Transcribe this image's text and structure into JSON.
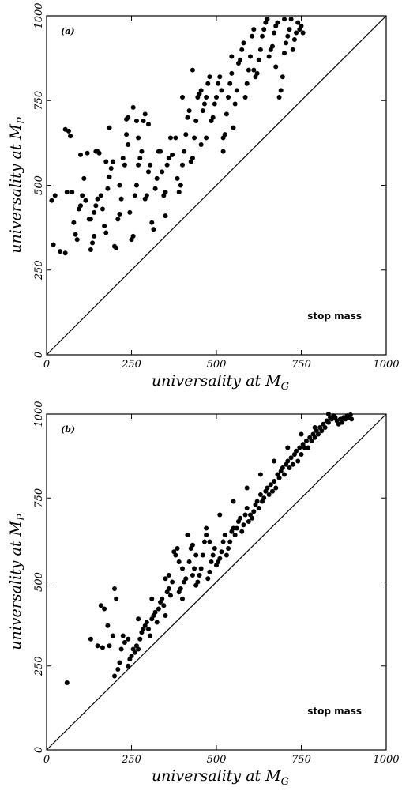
{
  "chart_data": [
    {
      "type": "scatter",
      "panel_label": "(a)",
      "xlabel": "universality at M",
      "xlabel_sub": "G",
      "ylabel": "universality at M",
      "ylabel_sub": "P",
      "annotation": "stop mass",
      "xlim": [
        0,
        1000
      ],
      "ylim": [
        0,
        1000
      ],
      "xticks": [
        "0",
        "250",
        "500",
        "750",
        "1000"
      ],
      "yticks": [
        "0",
        "250",
        "500",
        "750",
        "1000"
      ],
      "grid": false,
      "reference_line": [
        [
          0,
          0
        ],
        [
          1000,
          1000
        ]
      ],
      "points": [
        [
          15,
          455
        ],
        [
          25,
          470
        ],
        [
          20,
          325
        ],
        [
          40,
          305
        ],
        [
          55,
          300
        ],
        [
          55,
          665
        ],
        [
          65,
          660
        ],
        [
          70,
          645
        ],
        [
          60,
          480
        ],
        [
          75,
          480
        ],
        [
          80,
          390
        ],
        [
          85,
          355
        ],
        [
          90,
          340
        ],
        [
          95,
          430
        ],
        [
          100,
          440
        ],
        [
          105,
          470
        ],
        [
          110,
          520
        ],
        [
          115,
          455
        ],
        [
          100,
          590
        ],
        [
          120,
          595
        ],
        [
          125,
          400
        ],
        [
          130,
          400
        ],
        [
          130,
          310
        ],
        [
          135,
          330
        ],
        [
          140,
          350
        ],
        [
          140,
          420
        ],
        [
          145,
          440
        ],
        [
          150,
          460
        ],
        [
          150,
          600
        ],
        [
          155,
          595
        ],
        [
          160,
          470
        ],
        [
          165,
          430
        ],
        [
          170,
          380
        ],
        [
          175,
          360
        ],
        [
          180,
          490
        ],
        [
          185,
          525
        ],
        [
          185,
          670
        ],
        [
          190,
          550
        ],
        [
          195,
          570
        ],
        [
          200,
          320
        ],
        [
          205,
          315
        ],
        [
          210,
          400
        ],
        [
          215,
          415
        ],
        [
          220,
          460
        ],
        [
          225,
          580
        ],
        [
          230,
          560
        ],
        [
          235,
          650
        ],
        [
          235,
          695
        ],
        [
          240,
          700
        ],
        [
          245,
          420
        ],
        [
          250,
          340
        ],
        [
          255,
          350
        ],
        [
          260,
          470
        ],
        [
          265,
          500
        ],
        [
          270,
          560
        ],
        [
          275,
          580
        ],
        [
          280,
          600
        ],
        [
          285,
          690
        ],
        [
          290,
          710
        ],
        [
          255,
          730
        ],
        [
          265,
          690
        ],
        [
          270,
          640
        ],
        [
          295,
          470
        ],
        [
          300,
          540
        ],
        [
          305,
          560
        ],
        [
          310,
          390
        ],
        [
          315,
          370
        ],
        [
          320,
          490
        ],
        [
          325,
          520
        ],
        [
          330,
          600
        ],
        [
          335,
          600
        ],
        [
          340,
          540
        ],
        [
          345,
          470
        ],
        [
          350,
          480
        ],
        [
          355,
          560
        ],
        [
          360,
          580
        ],
        [
          365,
          640
        ],
        [
          370,
          590
        ],
        [
          380,
          640
        ],
        [
          385,
          520
        ],
        [
          390,
          480
        ],
        [
          395,
          500
        ],
        [
          400,
          560
        ],
        [
          405,
          600
        ],
        [
          410,
          650
        ],
        [
          415,
          700
        ],
        [
          420,
          720
        ],
        [
          425,
          570
        ],
        [
          430,
          580
        ],
        [
          435,
          640
        ],
        [
          440,
          690
        ],
        [
          445,
          760
        ],
        [
          450,
          770
        ],
        [
          455,
          780
        ],
        [
          460,
          720
        ],
        [
          465,
          740
        ],
        [
          470,
          760
        ],
        [
          475,
          800
        ],
        [
          480,
          820
        ],
        [
          485,
          690
        ],
        [
          490,
          700
        ],
        [
          495,
          740
        ],
        [
          500,
          760
        ],
        [
          505,
          800
        ],
        [
          510,
          820
        ],
        [
          515,
          780
        ],
        [
          520,
          640
        ],
        [
          525,
          650
        ],
        [
          530,
          710
        ],
        [
          535,
          760
        ],
        [
          540,
          800
        ],
        [
          545,
          830
        ],
        [
          550,
          670
        ],
        [
          555,
          740
        ],
        [
          560,
          780
        ],
        [
          565,
          860
        ],
        [
          570,
          870
        ],
        [
          575,
          900
        ],
        [
          580,
          920
        ],
        [
          585,
          760
        ],
        [
          590,
          800
        ],
        [
          595,
          840
        ],
        [
          600,
          880
        ],
        [
          605,
          940
        ],
        [
          610,
          960
        ],
        [
          615,
          820
        ],
        [
          620,
          830
        ],
        [
          625,
          870
        ],
        [
          630,
          900
        ],
        [
          635,
          940
        ],
        [
          640,
          960
        ],
        [
          645,
          980
        ],
        [
          650,
          990
        ],
        [
          655,
          880
        ],
        [
          660,
          900
        ],
        [
          665,
          910
        ],
        [
          670,
          950
        ],
        [
          675,
          970
        ],
        [
          680,
          980
        ],
        [
          685,
          760
        ],
        [
          690,
          780
        ],
        [
          695,
          820
        ],
        [
          700,
          890
        ],
        [
          705,
          920
        ],
        [
          710,
          940
        ],
        [
          715,
          960
        ],
        [
          720,
          990
        ],
        [
          725,
          900
        ],
        [
          730,
          930
        ],
        [
          735,
          950
        ],
        [
          740,
          980
        ],
        [
          745,
          960
        ],
        [
          750,
          970
        ],
        [
          755,
          950
        ],
        [
          520,
          600
        ],
        [
          470,
          640
        ],
        [
          430,
          840
        ],
        [
          400,
          760
        ],
        [
          455,
          620
        ],
        [
          545,
          880
        ],
        [
          610,
          840
        ],
        [
          675,
          850
        ],
        [
          700,
          990
        ],
        [
          350,
          410
        ],
        [
          290,
          460
        ],
        [
          240,
          620
        ],
        [
          215,
          500
        ],
        [
          175,
          570
        ],
        [
          145,
          600
        ],
        [
          300,
          680
        ]
      ]
    },
    {
      "type": "scatter",
      "panel_label": "(b)",
      "xlabel": "universality at M",
      "xlabel_sub": "G",
      "ylabel": "universality at M",
      "ylabel_sub": "P",
      "annotation": "stop mass",
      "xlim": [
        0,
        1000
      ],
      "ylim": [
        0,
        1000
      ],
      "xticks": [
        "0",
        "250",
        "500",
        "750",
        "1000"
      ],
      "yticks": [
        "0",
        "250",
        "500",
        "750",
        "1000"
      ],
      "grid": false,
      "reference_line": [
        [
          0,
          0
        ],
        [
          1000,
          1000
        ]
      ],
      "points": [
        [
          60,
          200
        ],
        [
          130,
          330
        ],
        [
          150,
          310
        ],
        [
          160,
          430
        ],
        [
          170,
          420
        ],
        [
          165,
          305
        ],
        [
          180,
          370
        ],
        [
          185,
          310
        ],
        [
          195,
          340
        ],
        [
          200,
          480
        ],
        [
          205,
          450
        ],
        [
          200,
          220
        ],
        [
          210,
          240
        ],
        [
          215,
          260
        ],
        [
          220,
          300
        ],
        [
          225,
          340
        ],
        [
          230,
          320
        ],
        [
          240,
          250
        ],
        [
          245,
          270
        ],
        [
          250,
          280
        ],
        [
          255,
          300
        ],
        [
          260,
          290
        ],
        [
          265,
          310
        ],
        [
          270,
          300
        ],
        [
          275,
          330
        ],
        [
          280,
          350
        ],
        [
          285,
          360
        ],
        [
          290,
          370
        ],
        [
          295,
          380
        ],
        [
          300,
          360
        ],
        [
          305,
          340
        ],
        [
          310,
          390
        ],
        [
          315,
          400
        ],
        [
          320,
          410
        ],
        [
          325,
          380
        ],
        [
          330,
          420
        ],
        [
          335,
          440
        ],
        [
          340,
          450
        ],
        [
          345,
          430
        ],
        [
          350,
          400
        ],
        [
          355,
          470
        ],
        [
          360,
          480
        ],
        [
          365,
          460
        ],
        [
          370,
          500
        ],
        [
          375,
          590
        ],
        [
          380,
          580
        ],
        [
          385,
          600
        ],
        [
          390,
          470
        ],
        [
          395,
          480
        ],
        [
          400,
          450
        ],
        [
          405,
          500
        ],
        [
          410,
          510
        ],
        [
          415,
          640
        ],
        [
          420,
          560
        ],
        [
          425,
          600
        ],
        [
          430,
          520
        ],
        [
          435,
          540
        ],
        [
          440,
          490
        ],
        [
          445,
          500
        ],
        [
          450,
          520
        ],
        [
          455,
          540
        ],
        [
          460,
          580
        ],
        [
          465,
          620
        ],
        [
          470,
          640
        ],
        [
          475,
          510
        ],
        [
          480,
          530
        ],
        [
          485,
          560
        ],
        [
          490,
          580
        ],
        [
          495,
          600
        ],
        [
          500,
          550
        ],
        [
          505,
          560
        ],
        [
          510,
          570
        ],
        [
          515,
          590
        ],
        [
          520,
          620
        ],
        [
          525,
          640
        ],
        [
          530,
          580
        ],
        [
          535,
          600
        ],
        [
          540,
          620
        ],
        [
          545,
          650
        ],
        [
          550,
          660
        ],
        [
          555,
          640
        ],
        [
          560,
          660
        ],
        [
          565,
          680
        ],
        [
          570,
          690
        ],
        [
          575,
          650
        ],
        [
          580,
          670
        ],
        [
          585,
          700
        ],
        [
          590,
          720
        ],
        [
          595,
          680
        ],
        [
          600,
          700
        ],
        [
          605,
          690
        ],
        [
          610,
          710
        ],
        [
          615,
          730
        ],
        [
          620,
          740
        ],
        [
          625,
          720
        ],
        [
          630,
          760
        ],
        [
          635,
          740
        ],
        [
          640,
          750
        ],
        [
          645,
          770
        ],
        [
          650,
          780
        ],
        [
          655,
          760
        ],
        [
          660,
          790
        ],
        [
          665,
          770
        ],
        [
          670,
          800
        ],
        [
          675,
          780
        ],
        [
          680,
          820
        ],
        [
          685,
          810
        ],
        [
          690,
          830
        ],
        [
          695,
          840
        ],
        [
          700,
          820
        ],
        [
          705,
          850
        ],
        [
          710,
          860
        ],
        [
          715,
          840
        ],
        [
          720,
          870
        ],
        [
          725,
          850
        ],
        [
          730,
          880
        ],
        [
          735,
          890
        ],
        [
          740,
          860
        ],
        [
          745,
          900
        ],
        [
          750,
          880
        ],
        [
          755,
          910
        ],
        [
          760,
          900
        ],
        [
          765,
          920
        ],
        [
          770,
          900
        ],
        [
          775,
          930
        ],
        [
          780,
          920
        ],
        [
          785,
          940
        ],
        [
          790,
          930
        ],
        [
          795,
          950
        ],
        [
          800,
          940
        ],
        [
          805,
          960
        ],
        [
          810,
          950
        ],
        [
          815,
          970
        ],
        [
          820,
          960
        ],
        [
          825,
          980
        ],
        [
          830,
          975
        ],
        [
          835,
          990
        ],
        [
          840,
          985
        ],
        [
          845,
          995
        ],
        [
          850,
          990
        ],
        [
          855,
          980
        ],
        [
          860,
          970
        ],
        [
          865,
          985
        ],
        [
          870,
          975
        ],
        [
          875,
          990
        ],
        [
          880,
          985
        ],
        [
          885,
          995
        ],
        [
          890,
          990
        ],
        [
          895,
          998
        ],
        [
          898,
          985
        ],
        [
          240,
          330
        ],
        [
          270,
          390
        ],
        [
          310,
          450
        ],
        [
          350,
          510
        ],
        [
          390,
          560
        ],
        [
          430,
          610
        ],
        [
          470,
          660
        ],
        [
          510,
          700
        ],
        [
          550,
          740
        ],
        [
          590,
          780
        ],
        [
          630,
          820
        ],
        [
          670,
          860
        ],
        [
          710,
          900
        ],
        [
          750,
          940
        ],
        [
          790,
          960
        ],
        [
          830,
          1000
        ],
        [
          360,
          520
        ],
        [
          400,
          540
        ],
        [
          440,
          580
        ],
        [
          480,
          620
        ]
      ]
    }
  ]
}
